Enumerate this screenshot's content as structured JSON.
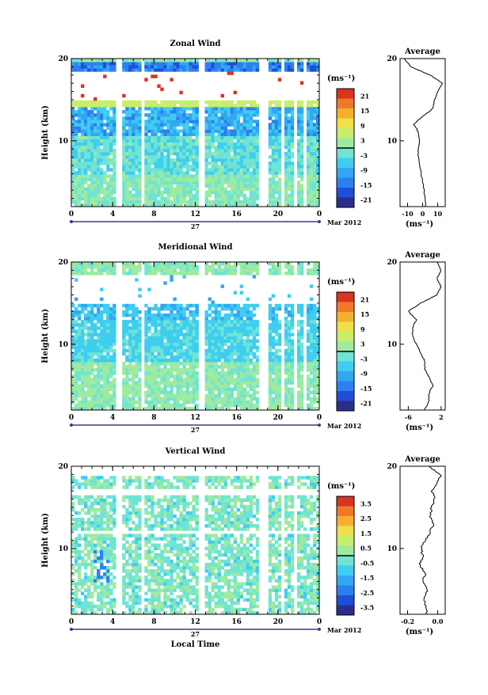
{
  "chart_data": [
    {
      "type": "heatmap",
      "title": "Zonal Wind",
      "ylabel": "Height (km)",
      "x_ticks": [
        "0",
        "4",
        "8",
        "12",
        "16",
        "20",
        "0"
      ],
      "y_ticks": [
        "10",
        "20"
      ],
      "ylim": [
        2,
        20
      ],
      "xlim": [
        0,
        24
      ],
      "colorbar": {
        "unit": "(ms⁻¹)",
        "ticks": [
          "21",
          "15",
          "9",
          "3",
          "-3",
          "-9",
          "-15",
          "-21"
        ],
        "range": [
          -24,
          24
        ]
      },
      "date_axis": {
        "day": "27",
        "month": "Mar 2012"
      },
      "average_profile": {
        "title": "Average",
        "xlabel": "(ms⁻¹)",
        "x_ticks": [
          "-10",
          "0",
          "10"
        ],
        "xlim": [
          -15,
          15
        ],
        "y_ticks": [
          "10",
          "20"
        ],
        "height": [
          2,
          4,
          6,
          8,
          9,
          10,
          11,
          11.5,
          12,
          12.5,
          13,
          13.5,
          14,
          15,
          16,
          17,
          18,
          19,
          20
        ],
        "value": [
          2,
          1,
          -1,
          -3,
          -3,
          -2,
          -3,
          -4,
          -6,
          -3,
          0,
          4,
          7,
          8,
          10,
          13,
          5,
          -8,
          -12
        ]
      }
    },
    {
      "type": "heatmap",
      "title": "Meridional Wind",
      "ylabel": "Height (km)",
      "x_ticks": [
        "0",
        "4",
        "8",
        "12",
        "16",
        "20",
        "0"
      ],
      "y_ticks": [
        "10",
        "20"
      ],
      "ylim": [
        2,
        20
      ],
      "xlim": [
        0,
        24
      ],
      "colorbar": {
        "unit": "(ms⁻¹)",
        "ticks": [
          "21",
          "15",
          "9",
          "3",
          "-3",
          "-9",
          "-15",
          "-21"
        ],
        "range": [
          -24,
          24
        ]
      },
      "date_axis": {
        "day": "27",
        "month": "Mar 2012"
      },
      "average_profile": {
        "title": "Average",
        "xlabel": "(ms⁻¹)",
        "x_ticks": [
          "-6",
          "2"
        ],
        "xlim": [
          -8,
          3
        ],
        "y_ticks": [
          "10",
          "20"
        ],
        "height": [
          2,
          3,
          4,
          5,
          6,
          7,
          8,
          9,
          10,
          11,
          12,
          13,
          14,
          15,
          16,
          17,
          18,
          19,
          20
        ],
        "value": [
          -2,
          -1,
          -1,
          0,
          -1,
          -2,
          -2,
          -3,
          -4,
          -5,
          -5,
          -4,
          -6,
          -3,
          1,
          2,
          1,
          2,
          1
        ]
      }
    },
    {
      "type": "heatmap",
      "title": "Vertical Wind",
      "ylabel": "Height (km)",
      "xlabel": "Local Time",
      "x_ticks": [
        "0",
        "4",
        "8",
        "12",
        "16",
        "20",
        "0"
      ],
      "y_ticks": [
        "10",
        "20"
      ],
      "ylim": [
        2,
        20
      ],
      "xlim": [
        0,
        24
      ],
      "colorbar": {
        "unit": "(ms⁻¹)",
        "ticks": [
          "3.5",
          "2.5",
          "1.5",
          "0.5",
          "-0.5",
          "-1.5",
          "-2.5",
          "-3.5"
        ],
        "range": [
          -4,
          4
        ]
      },
      "date_axis": {
        "day": "27",
        "month": "Mar 2012"
      },
      "average_profile": {
        "title": "Average",
        "xlabel": "(ms⁻¹)",
        "x_ticks": [
          "-0.2",
          "0.0"
        ],
        "xlim": [
          -0.25,
          0.05
        ],
        "y_ticks": [
          "10",
          "20"
        ],
        "height": [
          2,
          3,
          4,
          5,
          6,
          7,
          8,
          9,
          10,
          11,
          12,
          13,
          14,
          15,
          16,
          17,
          18,
          19,
          20
        ],
        "value": [
          -0.07,
          -0.08,
          -0.09,
          -0.07,
          -0.1,
          -0.08,
          -0.12,
          -0.1,
          -0.11,
          -0.08,
          -0.05,
          -0.03,
          -0.05,
          -0.04,
          -0.02,
          -0.04,
          0.0,
          0.02,
          -0.06
        ]
      }
    }
  ]
}
